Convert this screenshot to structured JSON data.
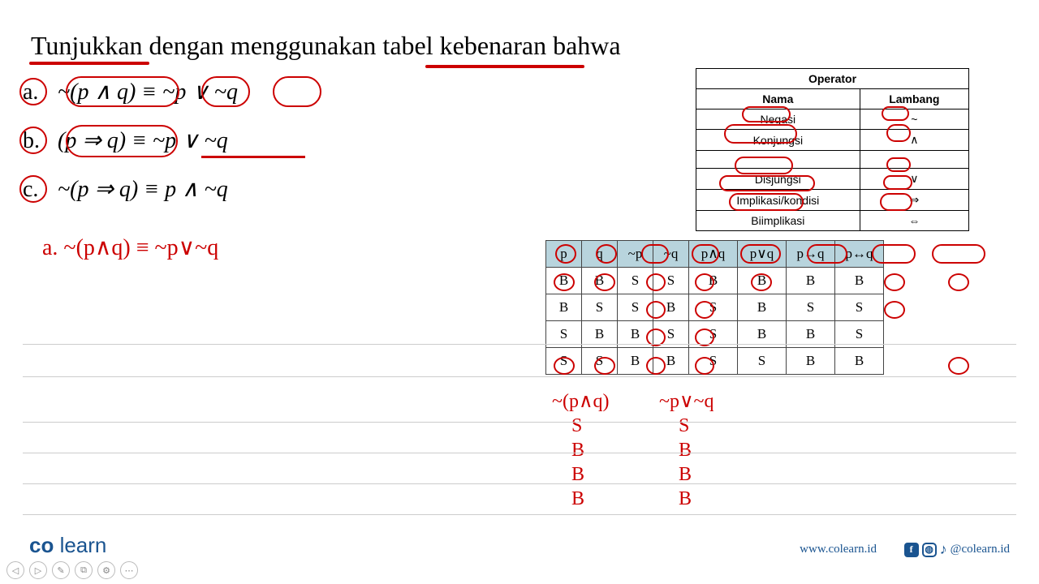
{
  "title": "Tunjukkan dengan menggunakan tabel kebenaran bahwa",
  "problems": {
    "a": {
      "label": "a.",
      "expr": "~(p ∧ q) ≡ ~p ∨ ~q"
    },
    "b": {
      "label": "b.",
      "expr": "(p ⇒ q) ≡ ~p ∨ ~q"
    },
    "c": {
      "label": "c.",
      "expr": "~(p ⇒ q) ≡ p ∧ ~q"
    }
  },
  "hand_a": "a. ~(p∧q) ≡ ~p∨~q",
  "operator_table": {
    "title": "Operator",
    "headers": [
      "Nama",
      "Lambang"
    ],
    "rows": [
      [
        "Negasi",
        "~"
      ],
      [
        "Konjungsi",
        "∧"
      ],
      [
        "",
        ""
      ],
      [
        "Disjungsi",
        "∨"
      ],
      [
        "Implikasi/kondisi",
        "⇒"
      ],
      [
        "Biimplikasi",
        "⇔"
      ]
    ]
  },
  "truth_table": {
    "headers": [
      "p",
      "q",
      "~p",
      "~q",
      "p∧q",
      "p∨q",
      "p→q",
      "p↔q"
    ],
    "rows": [
      [
        "B",
        "B",
        "S",
        "S",
        "B",
        "B",
        "B",
        "B"
      ],
      [
        "B",
        "S",
        "S",
        "B",
        "S",
        "B",
        "S",
        "S"
      ],
      [
        "S",
        "B",
        "B",
        "S",
        "S",
        "B",
        "B",
        "S"
      ],
      [
        "S",
        "S",
        "B",
        "B",
        "S",
        "S",
        "B",
        "B"
      ]
    ]
  },
  "hand_cols": {
    "left": {
      "header": "~(p∧q)",
      "vals": [
        "S",
        "B",
        "B",
        "B"
      ]
    },
    "right": {
      "header": "~p∨~q",
      "vals": [
        "S",
        "B",
        "B",
        "B"
      ]
    }
  },
  "notebook_lines_y": [
    424,
    464,
    520,
    558,
    596,
    634
  ],
  "footer": {
    "logo1": "co",
    "logo2": " learn",
    "url": "www.colearn.id",
    "handle": "@colearn.id"
  },
  "nav": [
    "◁",
    "▷",
    "✎",
    "⧉",
    "⚙",
    "⋯"
  ],
  "colors": {
    "red": "#cc0000",
    "blue": "#1a5490",
    "header_bg": "#b8d4dd"
  }
}
